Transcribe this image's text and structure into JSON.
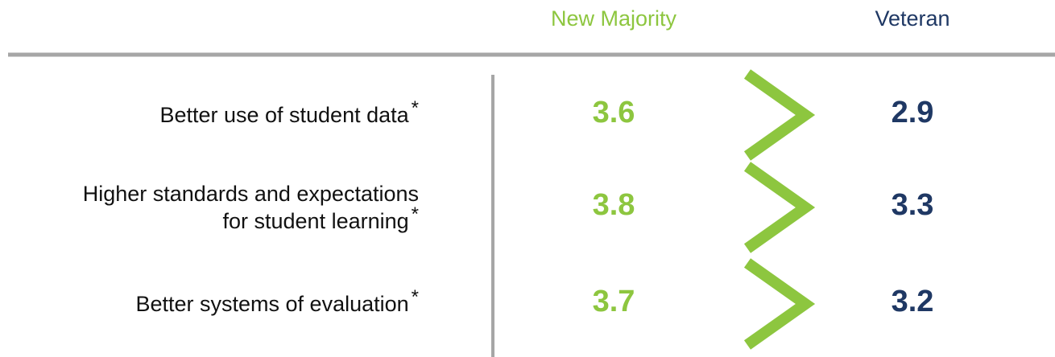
{
  "header": {
    "columns": [
      "New Majority",
      "Veteran"
    ]
  },
  "rows": [
    {
      "label": [
        "Better use of student data"
      ],
      "note": "*",
      "new_majority": "3.6",
      "veteran": "2.9"
    },
    {
      "label": [
        "Higher standards and expectations",
        "for student learning"
      ],
      "note": "*",
      "new_majority": "3.8",
      "veteran": "3.3"
    },
    {
      "label": [
        "Better systems of evaluation"
      ],
      "note": "*",
      "new_majority": "3.7",
      "veteran": "3.2"
    }
  ]
}
